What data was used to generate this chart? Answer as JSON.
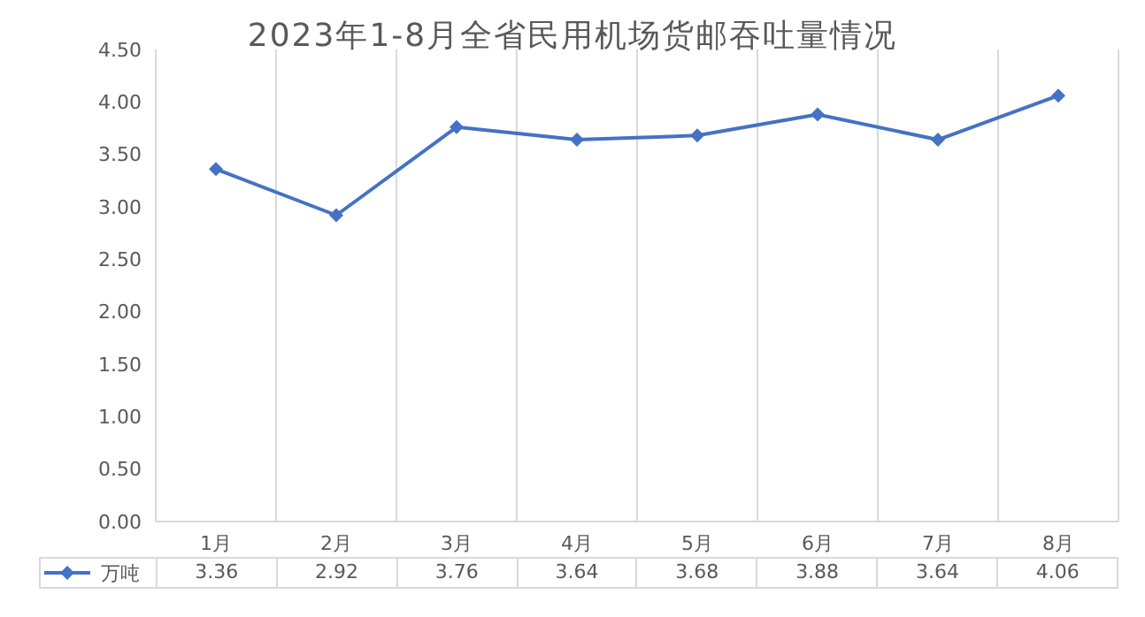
{
  "chart_data": {
    "type": "line",
    "title": "2023年1-8月全省民用机场货邮吞吐量情况",
    "categories": [
      "1月",
      "2月",
      "3月",
      "4月",
      "5月",
      "6月",
      "7月",
      "8月"
    ],
    "series": [
      {
        "name": "万吨",
        "color": "#4472c4",
        "values": [
          3.36,
          2.92,
          3.76,
          3.64,
          3.68,
          3.88,
          3.64,
          4.06
        ]
      }
    ],
    "ylim": [
      0,
      4.5
    ],
    "yticks": [
      "0.00",
      "0.50",
      "1.00",
      "1.50",
      "2.00",
      "2.50",
      "3.00",
      "3.50",
      "4.00",
      "4.50"
    ],
    "grid": "x",
    "legend": "bottom",
    "marker": "diamond",
    "line_style": "solid",
    "data_labels": true
  }
}
